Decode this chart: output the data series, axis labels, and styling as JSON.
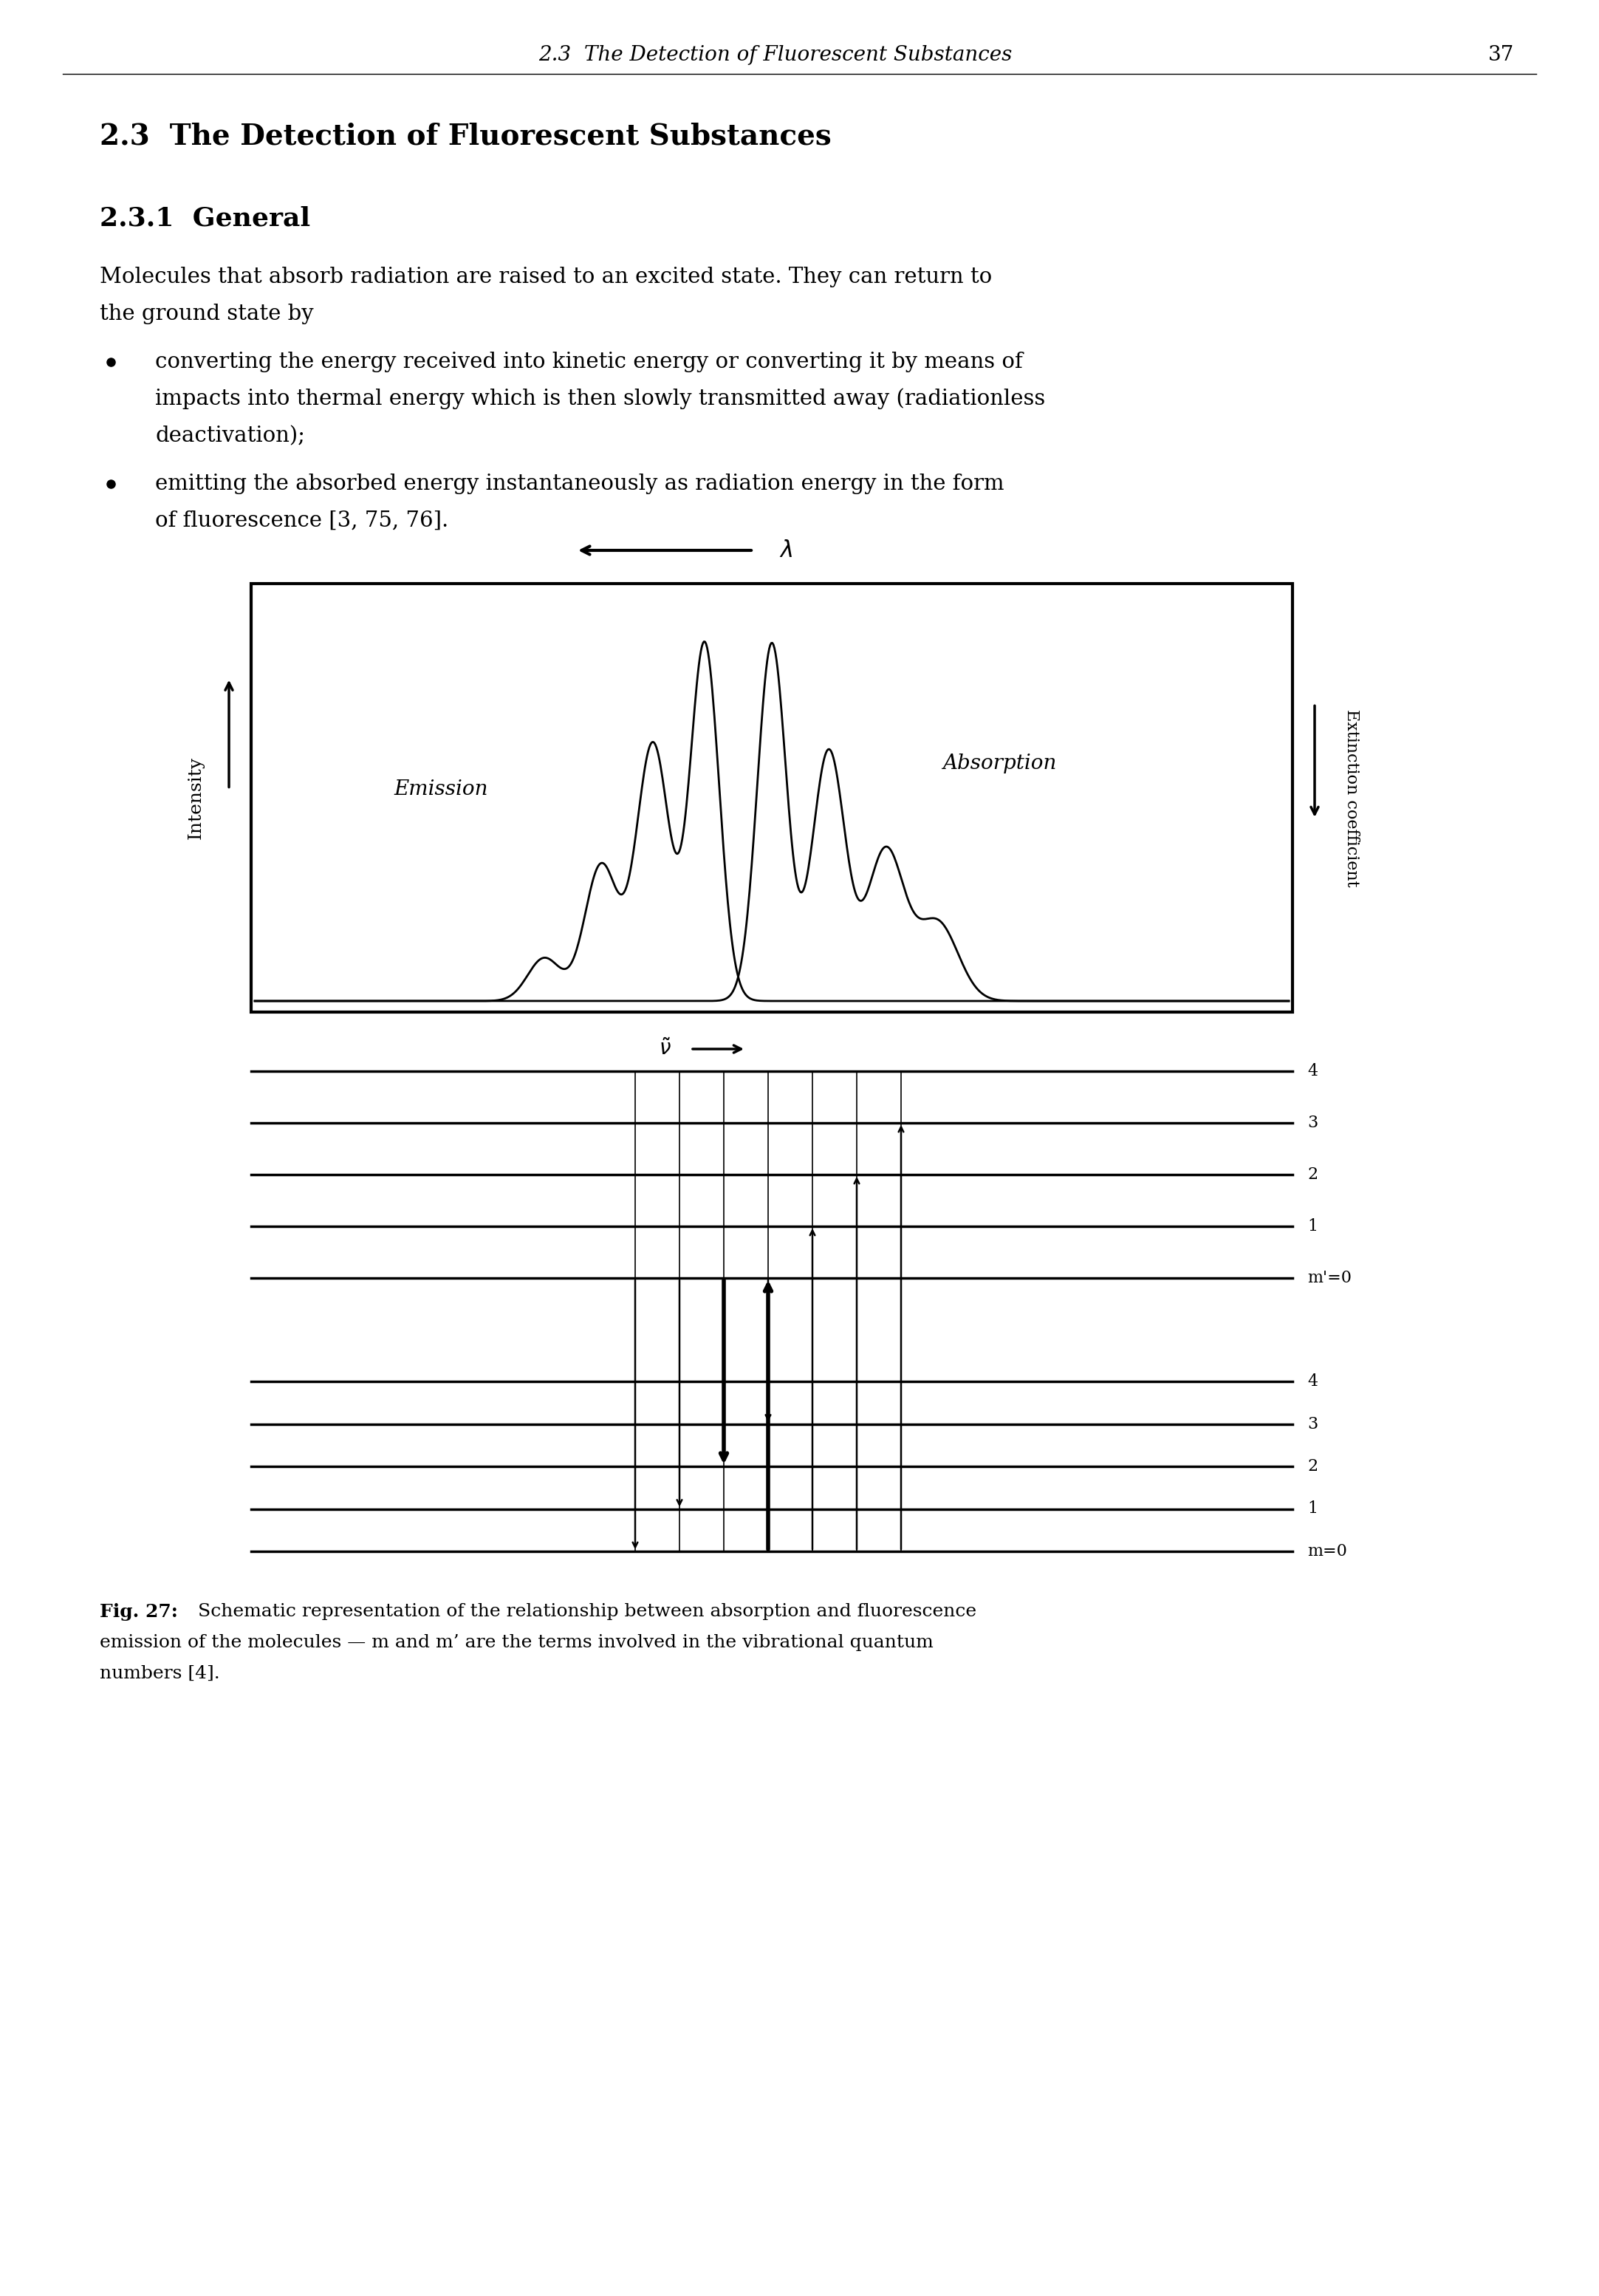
{
  "page_header": "2.3  The Detection of Fluorescent Substances",
  "page_number": "37",
  "section_title": "2.3  The Detection of Fluorescent Substances",
  "subsection_title": "2.3.1  General",
  "body_line1": "Molecules that absorb radiation are raised to an excited state. They can return to",
  "body_line2": "the ground state by",
  "bullet1_line1": "converting the energy received into kinetic energy or converting it by means of",
  "bullet1_line2": "impacts into thermal energy which is then slowly transmitted away (radiationless",
  "bullet1_line3": "deactivation);",
  "bullet2_line1": "emitting the absorbed energy instantaneously as radiation energy in the form",
  "bullet2_line2": "of fluorescence [3, 75, 76].",
  "ylabel_left": "Intensity",
  "ylabel_right": "Extinction coefficient",
  "xlabel_label": "$\\tilde{\\nu}$",
  "toplabel": "$\\lambda$",
  "emission_label": "Emission",
  "absorption_label": "Absorption",
  "fig_bold": "Fig. 27:",
  "fig_caption1": " Schematic representation of the relationship between absorption and fluorescence",
  "fig_caption2": "emission of the molecules — m and m’ are the terms involved in the vibrational quantum",
  "fig_caption3": "numbers [4].",
  "background": "#ffffff",
  "text_color": "#000000",
  "header_fontsize": 20,
  "section_fontsize": 28,
  "subsection_fontsize": 26,
  "body_fontsize": 21,
  "caption_fontsize": 18
}
